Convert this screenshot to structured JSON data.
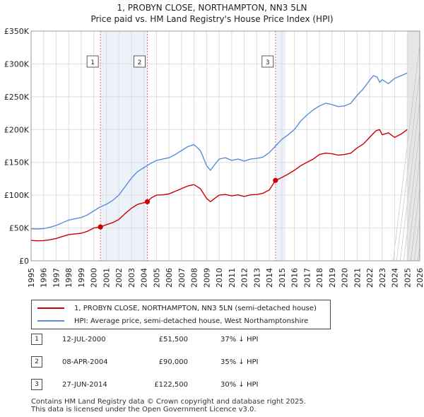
{
  "chart_data": {
    "type": "line",
    "title": "1, PROBYN CLOSE, NORTHAMPTON, NN3 5LN",
    "subtitle": "Price paid vs. HM Land Registry's House Price Index (HPI)",
    "xlim": [
      1995,
      2026
    ],
    "ylim": [
      0,
      350000
    ],
    "x_ticks": [
      "1995",
      "1996",
      "1997",
      "1998",
      "1999",
      "2000",
      "2001",
      "2002",
      "2003",
      "2004",
      "2005",
      "2006",
      "2007",
      "2008",
      "2009",
      "2010",
      "2011",
      "2012",
      "2013",
      "2014",
      "2015",
      "2016",
      "2017",
      "2018",
      "2019",
      "2020",
      "2021",
      "2022",
      "2023",
      "2024",
      "2025",
      "2026"
    ],
    "y_ticks": [
      {
        "value": 0,
        "label": "£0"
      },
      {
        "value": 50000,
        "label": "£50K"
      },
      {
        "value": 100000,
        "label": "£100K"
      },
      {
        "value": 150000,
        "label": "£150K"
      },
      {
        "value": 200000,
        "label": "£200K"
      },
      {
        "value": 250000,
        "label": "£250K"
      },
      {
        "value": 300000,
        "label": "£300K"
      },
      {
        "value": 350000,
        "label": "£350K"
      }
    ],
    "grid": true,
    "shaded_periods": [
      {
        "from": 2000.53,
        "to": 2004.27
      },
      {
        "from": 2014.49,
        "to": 2015.3
      },
      {
        "from": 2025.0,
        "to": 2026.0
      }
    ],
    "series": [
      {
        "name": "1, PROBYN CLOSE, NORTHAMPTON, NN3 5LN (semi-detached house)",
        "color": "#cc0000",
        "x": [
          1995,
          1995.5,
          1996,
          1996.5,
          1997,
          1997.5,
          1998,
          1998.5,
          1999,
          1999.5,
          2000,
          2000.53,
          2001,
          2001.5,
          2002,
          2002.5,
          2003,
          2003.5,
          2004,
          2004.27,
          2004.6,
          2005,
          2005.5,
          2006,
          2006.5,
          2007,
          2007.5,
          2008,
          2008.5,
          2009,
          2009.3,
          2009.7,
          2010,
          2010.5,
          2011,
          2011.5,
          2012,
          2012.5,
          2013,
          2013.5,
          2014,
          2014.49,
          2014.8,
          2015,
          2015.5,
          2016,
          2016.5,
          2017,
          2017.5,
          2018,
          2018.5,
          2019,
          2019.5,
          2020,
          2020.5,
          2021,
          2021.5,
          2022,
          2022.5,
          2022.8,
          2023,
          2023.5,
          2024,
          2024.5,
          2025
        ],
        "values": [
          31000,
          30500,
          30800,
          32000,
          34000,
          37000,
          40000,
          41000,
          42000,
          45000,
          50000,
          51500,
          55000,
          58000,
          63000,
          72000,
          80000,
          86000,
          88500,
          90000,
          96000,
          100000,
          100500,
          102000,
          106000,
          110000,
          114000,
          116000,
          110000,
          95000,
          90000,
          96000,
          100000,
          101000,
          99000,
          100500,
          98000,
          100500,
          101000,
          103000,
          108000,
          122500,
          125000,
          127000,
          132000,
          138000,
          145000,
          150000,
          155000,
          162000,
          164000,
          163000,
          161000,
          162000,
          164000,
          172000,
          178000,
          188000,
          198000,
          200000,
          192000,
          195000,
          188000,
          193000,
          200000
        ]
      },
      {
        "name": "HPI: Average price, semi-detached house, West Northamptonshire",
        "color": "#5b8ed6",
        "x": [
          1995,
          1995.5,
          1996,
          1996.5,
          1997,
          1997.5,
          1998,
          1998.5,
          1999,
          1999.5,
          2000,
          2000.5,
          2001,
          2001.5,
          2002,
          2002.5,
          2003,
          2003.5,
          2004,
          2004.5,
          2005,
          2005.5,
          2006,
          2006.5,
          2007,
          2007.5,
          2008,
          2008.5,
          2009,
          2009.3,
          2009.7,
          2010,
          2010.5,
          2011,
          2011.5,
          2012,
          2012.5,
          2013,
          2013.5,
          2014,
          2014.5,
          2015,
          2015.5,
          2016,
          2016.5,
          2017,
          2017.5,
          2018,
          2018.5,
          2019,
          2019.5,
          2020,
          2020.5,
          2021,
          2021.5,
          2022,
          2022.3,
          2022.6,
          2022.8,
          2023,
          2023.5,
          2024,
          2024.5,
          2025
        ],
        "values": [
          49000,
          48500,
          49000,
          51000,
          54000,
          58000,
          62000,
          64000,
          66000,
          70000,
          76000,
          82000,
          86000,
          92000,
          100000,
          113000,
          126000,
          136000,
          142000,
          148000,
          153000,
          155000,
          157000,
          162000,
          168000,
          174000,
          177000,
          168000,
          145000,
          138000,
          148000,
          155000,
          157000,
          153000,
          155000,
          152000,
          155000,
          156000,
          158000,
          165000,
          175000,
          185000,
          192000,
          200000,
          213000,
          222000,
          230000,
          236000,
          240000,
          238000,
          235000,
          236000,
          240000,
          252000,
          262000,
          275000,
          282000,
          280000,
          272000,
          276000,
          270000,
          278000,
          282000,
          286000
        ]
      }
    ],
    "sales_markers": [
      {
        "label": "1",
        "x": 2000.53,
        "value": 51500
      },
      {
        "label": "2",
        "x": 2004.27,
        "value": 90000
      },
      {
        "label": "3",
        "x": 2014.49,
        "value": 122500
      }
    ]
  },
  "legend": {
    "property_label": "1, PROBYN CLOSE, NORTHAMPTON, NN3 5LN (semi-detached house)",
    "hpi_label": "HPI: Average price, semi-detached house, West Northamptonshire"
  },
  "sales": [
    {
      "num": "1",
      "date": "12-JUL-2000",
      "price": "£51,500",
      "hpi": "37% ↓ HPI"
    },
    {
      "num": "2",
      "date": "08-APR-2004",
      "price": "£90,000",
      "hpi": "35% ↓ HPI"
    },
    {
      "num": "3",
      "date": "27-JUN-2014",
      "price": "£122,500",
      "hpi": "30% ↓ HPI"
    }
  ],
  "footer": {
    "line1": "Contains HM Land Registry data © Crown copyright and database right 2025.",
    "line2": "This data is licensed under the Open Government Licence v3.0."
  }
}
